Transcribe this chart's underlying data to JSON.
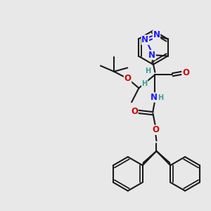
{
  "bg_color": "#e8e8e8",
  "bond_color": "#1a1a1a",
  "N_color": "#1a1aff",
  "O_color": "#cc0000",
  "H_color": "#3a9a9a",
  "line_width": 1.5,
  "font_size_atom": 8.5,
  "font_size_H": 7.0,
  "figsize": [
    3.0,
    3.0
  ],
  "dpi": 100,
  "xlim": [
    0,
    10
  ],
  "ylim": [
    0,
    10
  ]
}
